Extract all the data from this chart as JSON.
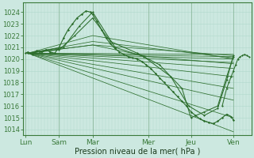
{
  "bg_color": "#cce8e0",
  "grid_color_v": "#b0d8cc",
  "grid_color_h": "#b0d8cc",
  "line_color": "#2d6e2d",
  "xlabel": "Pression niveau de la mer( hPa )",
  "xtick_labels": [
    "Lun",
    "Sam",
    "Mar",
    "Mer",
    "Jeu",
    "Ven"
  ],
  "xtick_pos": [
    0.0,
    0.15,
    0.3,
    0.55,
    0.74,
    0.93
  ],
  "ylim": [
    1013.5,
    1024.8
  ],
  "yticks": [
    1014,
    1015,
    1016,
    1017,
    1018,
    1019,
    1020,
    1021,
    1022,
    1023,
    1024
  ],
  "figsize": [
    3.2,
    2.0
  ],
  "dpi": 100,
  "lines_straight": [
    {
      "x": [
        0.01,
        0.93
      ],
      "y": [
        1020.5,
        1020.4
      ]
    },
    {
      "x": [
        0.01,
        0.93
      ],
      "y": [
        1020.5,
        1020.2
      ]
    },
    {
      "x": [
        0.01,
        0.93
      ],
      "y": [
        1020.5,
        1020.0
      ]
    },
    {
      "x": [
        0.01,
        0.93
      ],
      "y": [
        1020.5,
        1019.7
      ]
    },
    {
      "x": [
        0.01,
        0.93
      ],
      "y": [
        1020.5,
        1019.2
      ]
    },
    {
      "x": [
        0.01,
        0.93
      ],
      "y": [
        1020.5,
        1018.5
      ]
    },
    {
      "x": [
        0.01,
        0.93
      ],
      "y": [
        1020.5,
        1017.5
      ]
    },
    {
      "x": [
        0.01,
        0.93
      ],
      "y": [
        1020.5,
        1016.5
      ]
    },
    {
      "x": [
        0.01,
        0.93
      ],
      "y": [
        1020.5,
        1015.0
      ]
    },
    {
      "x": [
        0.01,
        0.93
      ],
      "y": [
        1020.5,
        1013.8
      ]
    }
  ],
  "lines_peaked": [
    {
      "x": [
        0.01,
        0.3,
        0.93
      ],
      "y": [
        1020.5,
        1021.2,
        1020.3
      ]
    },
    {
      "x": [
        0.01,
        0.3,
        0.93
      ],
      "y": [
        1020.5,
        1021.5,
        1020.1
      ]
    },
    {
      "x": [
        0.01,
        0.3,
        0.93
      ],
      "y": [
        1020.5,
        1022.0,
        1020.0
      ]
    },
    {
      "x": [
        0.01,
        0.3,
        0.55,
        0.93
      ],
      "y": [
        1020.5,
        1021.2,
        1020.2,
        1019.6
      ]
    }
  ],
  "main_line": {
    "x": [
      0.0,
      0.01,
      0.03,
      0.05,
      0.07,
      0.09,
      0.11,
      0.13,
      0.15,
      0.17,
      0.19,
      0.21,
      0.23,
      0.25,
      0.27,
      0.29,
      0.3,
      0.32,
      0.34,
      0.36,
      0.38,
      0.4,
      0.42,
      0.44,
      0.46,
      0.48,
      0.5,
      0.52,
      0.54,
      0.56,
      0.58,
      0.6,
      0.62,
      0.64,
      0.66,
      0.68,
      0.7,
      0.72,
      0.74,
      0.76,
      0.78,
      0.8,
      0.82,
      0.84,
      0.86,
      0.88,
      0.9,
      0.92,
      0.93
    ],
    "y": [
      1020.5,
      1020.6,
      1020.4,
      1020.7,
      1020.5,
      1020.8,
      1020.6,
      1020.5,
      1021.0,
      1021.8,
      1022.5,
      1023.0,
      1023.5,
      1023.8,
      1024.1,
      1024.0,
      1023.8,
      1023.2,
      1022.5,
      1021.8,
      1021.3,
      1020.9,
      1020.6,
      1020.4,
      1020.2,
      1020.1,
      1020.0,
      1019.8,
      1019.5,
      1019.2,
      1018.8,
      1018.4,
      1018.0,
      1017.6,
      1017.2,
      1016.8,
      1016.4,
      1016.0,
      1015.5,
      1015.2,
      1014.9,
      1014.7,
      1014.6,
      1014.5,
      1014.7,
      1015.0,
      1015.3,
      1015.1,
      1014.8
    ]
  },
  "line_peak2": {
    "x": [
      0.01,
      0.15,
      0.22,
      0.3,
      0.38,
      0.5,
      0.6,
      0.7,
      0.74,
      0.8,
      0.86,
      0.9,
      0.93
    ],
    "y": [
      1020.5,
      1020.8,
      1022.0,
      1023.5,
      1021.5,
      1020.5,
      1019.5,
      1017.5,
      1015.0,
      1015.5,
      1016.0,
      1018.5,
      1020.2
    ]
  },
  "line_peak3": {
    "x": [
      0.01,
      0.17,
      0.24,
      0.3,
      0.4,
      0.53,
      0.65,
      0.73,
      0.8,
      0.86,
      0.9,
      0.93
    ],
    "y": [
      1020.5,
      1021.0,
      1022.8,
      1024.0,
      1021.0,
      1020.2,
      1018.5,
      1016.0,
      1015.2,
      1015.8,
      1018.2,
      1020.3
    ]
  },
  "ven_cluster": {
    "x": [
      0.88,
      0.9,
      0.91,
      0.92,
      0.93,
      0.94,
      0.95,
      0.96,
      0.97,
      0.98,
      0.99,
      1.0
    ],
    "y": [
      1016.0,
      1017.5,
      1018.0,
      1018.5,
      1019.0,
      1019.5,
      1020.0,
      1020.2,
      1020.3,
      1020.4,
      1020.3,
      1020.2
    ]
  }
}
